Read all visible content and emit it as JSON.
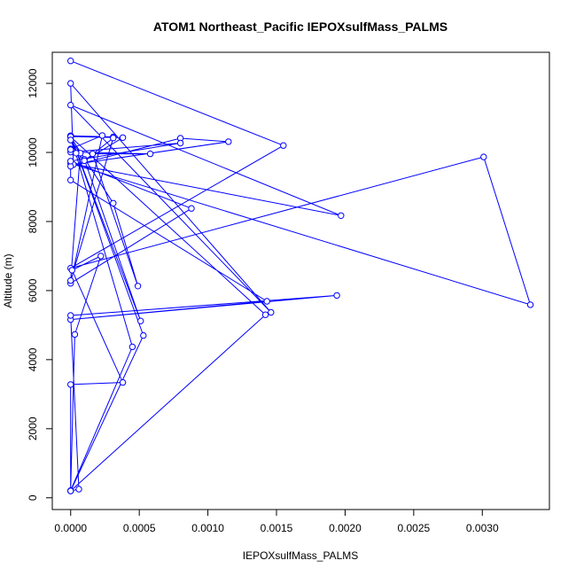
{
  "chart_data": {
    "type": "scatter",
    "title": "ATOM1 Northeast_Pacific IEPOXsulfMass_PALMS",
    "xlabel": "IEPOXsulfMass_PALMS",
    "ylabel": "Altitude (m)",
    "xlim": [
      -0.000134,
      0.003489
    ],
    "ylim": [
      -340,
      12900
    ],
    "xticks": [
      0.0,
      0.0005,
      0.001,
      0.0015,
      0.002,
      0.0025,
      0.003
    ],
    "xtick_labels": [
      "0.0000",
      "0.0005",
      "0.0010",
      "0.0015",
      "0.0020",
      "0.0025",
      "0.0030"
    ],
    "yticks": [
      0,
      2000,
      4000,
      6000,
      8000,
      10000,
      12000
    ],
    "ytick_labels": [
      "0",
      "2000",
      "4000",
      "6000",
      "8000",
      "10000",
      "12000"
    ],
    "grid": false,
    "legend": "none",
    "color": "#0000ff",
    "series": [
      {
        "x": [
          0.0,
          0.00155,
          0.0,
          0.00301,
          0.00335,
          0.0,
          0.00197,
          0.0,
          0.00146,
          0.0,
          2e-05,
          0.00115,
          0.0008,
          0.0,
          0.0,
          0.00143,
          0.0,
          0.00194,
          0.0,
          6e-05,
          0.0,
          3e-05,
          0.00022,
          1e-05,
          0.00038,
          0.0,
          0.0,
          0.00045,
          0.0,
          0.00053,
          0.0,
          0.00142,
          0.0,
          0.00031,
          0.00049,
          0.00016,
          0.00058,
          0.0,
          0.0008,
          0.0,
          0.00088,
          0.0,
          0.00023,
          0.0,
          0.0001,
          0.00051,
          0.0,
          0.00031,
          0.0,
          0.00038,
          0.0001,
          0.00031,
          0.0,
          7e-05,
          0.0,
          4e-05,
          0.0
        ],
        "y": [
          12650,
          10200,
          6650,
          9870,
          5590,
          9680,
          8170,
          11370,
          5370,
          12000,
          9650,
          10310,
          10410,
          9600,
          9200,
          5690,
          5160,
          5860,
          5280,
          250,
          200,
          4730,
          7000,
          6590,
          3340,
          3280,
          210,
          4370,
          10480,
          4700,
          200,
          5300,
          10450,
          8530,
          6130,
          9960,
          9960,
          10010,
          10270,
          9750,
          8380,
          6210,
          10490,
          10100,
          9800,
          5120,
          10480,
          10450,
          10460,
          10430,
          9760,
          10420,
          6290,
          9980,
          10360,
          9980,
          10080
        ]
      }
    ]
  }
}
